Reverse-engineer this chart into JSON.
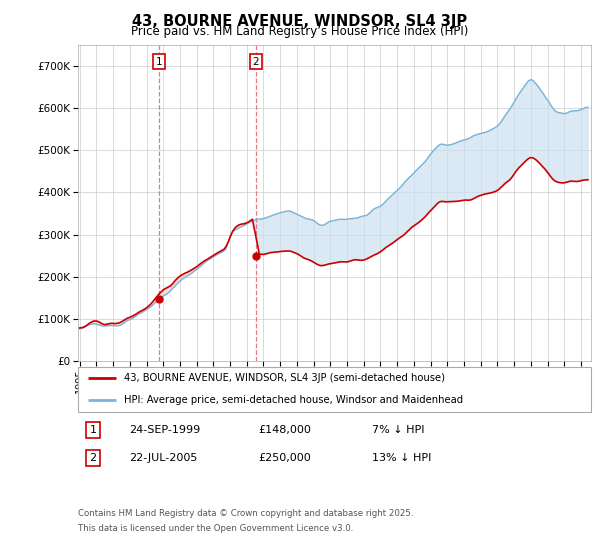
{
  "title": "43, BOURNE AVENUE, WINDSOR, SL4 3JP",
  "subtitle": "Price paid vs. HM Land Registry’s House Price Index (HPI)",
  "background_color": "#ffffff",
  "hpi_color": "#7ab4d8",
  "price_color": "#cc0000",
  "fill_color": "#cce0f0",
  "grid_color": "#cccccc",
  "purchase1_year": 1999.73,
  "purchase1_price": 148000,
  "purchase2_year": 2005.55,
  "purchase2_price": 250000,
  "legend_entry1": "43, BOURNE AVENUE, WINDSOR, SL4 3JP (semi-detached house)",
  "legend_entry2": "HPI: Average price, semi-detached house, Windsor and Maidenhead",
  "table_row1_num": "1",
  "table_row1_date": "24-SEP-1999",
  "table_row1_price": "£148,000",
  "table_row1_hpi": "7% ↓ HPI",
  "table_row2_num": "2",
  "table_row2_date": "22-JUL-2005",
  "table_row2_price": "£250,000",
  "table_row2_hpi": "13% ↓ HPI",
  "footnote_line1": "Contains HM Land Registry data © Crown copyright and database right 2025.",
  "footnote_line2": "This data is licensed under the Open Government Licence v3.0.",
  "ylim_max": 750000,
  "xlim_start": 1994.9,
  "xlim_end": 2025.6
}
